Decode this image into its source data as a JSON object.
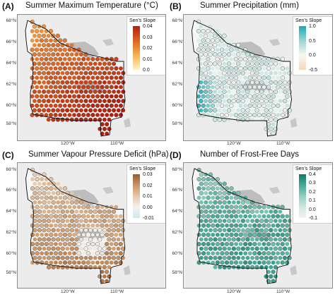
{
  "panels": [
    {
      "letter": "(A)",
      "title": "Summer Maximum Temperature (°C)",
      "legend_title": "Sen's Slope",
      "ticks": [
        "0.04",
        "0.03",
        "0.02",
        "0.01",
        "0.0"
      ],
      "colors": [
        "#fff4c8",
        "#f9c36a",
        "#ec8a34",
        "#d2521c",
        "#b0200f"
      ],
      "palette_kind": "warm",
      "lat_labels": [
        "68°N",
        "66°N",
        "64°N",
        "62°N",
        "60°N",
        "58°N"
      ],
      "lon_labels": [
        "120°W",
        "110°W"
      ]
    },
    {
      "letter": "(B)",
      "title": "Summer Precipitation (mm)",
      "legend_title": "Sen's Slope",
      "ticks": [
        "1.0",
        "0.5",
        "0.0",
        "-0.5"
      ],
      "colors": [
        "#f6d8b4",
        "#f7f7f2",
        "#9ad5d2",
        "#19a9b5"
      ],
      "palette_kind": "wet",
      "lat_labels": [
        "68°N",
        "66°N",
        "64°N",
        "62°N",
        "60°N",
        "58°N"
      ],
      "lon_labels": [
        "120°W",
        "110°W"
      ]
    },
    {
      "letter": "(C)",
      "title": "Summer Vapour Pressure Deficit (hPa)",
      "legend_title": "Sen's Slope",
      "ticks": [
        "0.03",
        "0.02",
        "0.01",
        "0.00",
        "-0.01"
      ],
      "colors": [
        "#cfe9ee",
        "#f4f1ec",
        "#e6c8a8",
        "#c99668",
        "#9a5a2c"
      ],
      "palette_kind": "vpd",
      "lat_labels": [
        "68°N",
        "66°N",
        "64°N",
        "62°N",
        "60°N",
        "58°N"
      ],
      "lon_labels": [
        "120°W",
        "110°W"
      ]
    },
    {
      "letter": "(D)",
      "title": "Number of Frost-Free Days",
      "legend_title": "Sen's Slope",
      "ticks": [
        "0.4",
        "0.3",
        "0.2",
        "0.1",
        "0.0",
        "-0.1"
      ],
      "colors": [
        "#f4f4ee",
        "#cfe8e0",
        "#8fcfbd",
        "#45a995",
        "#137a68"
      ],
      "palette_kind": "frost",
      "lat_labels": [
        "68°N",
        "66°N",
        "64°N",
        "62°N",
        "60°N",
        "58°N"
      ],
      "lon_labels": [
        "120°W",
        "110°W"
      ]
    }
  ]
}
